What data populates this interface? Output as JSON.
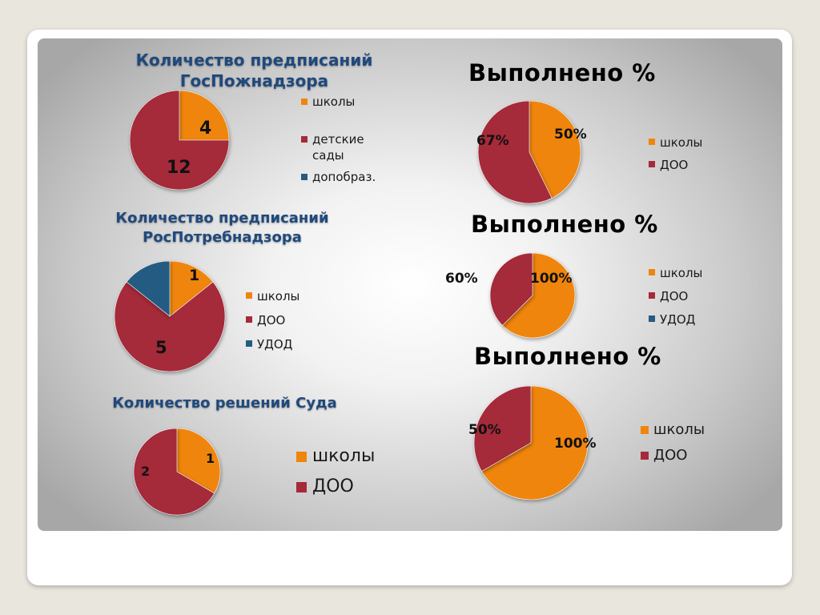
{
  "colors": {
    "orange": "#f0850d",
    "red": "#a52a3a",
    "blue": "#245b82"
  },
  "charts": {
    "gospozh": {
      "title": "Количество предписаний ГосПожнадзора",
      "labels": [
        "4",
        "12"
      ],
      "legend": [
        "школы",
        "детские сады",
        "допобраз."
      ]
    },
    "rospotreb": {
      "title": "Количество предписаний РосПотребнадзора",
      "labels": [
        "1",
        "5"
      ],
      "legend": [
        "школы",
        "ДОО",
        "УДОД"
      ]
    },
    "sud": {
      "title": "Количество решений Суда",
      "labels": [
        "1",
        "2"
      ],
      "legend": [
        "школы",
        "ДОО"
      ]
    },
    "vyp1": {
      "title": "Выполнено %",
      "labels": [
        "50%",
        "67%"
      ],
      "legend": [
        "школы",
        "ДОО"
      ]
    },
    "vyp2": {
      "title": "Выполнено %",
      "labels": [
        "100%",
        "60%"
      ],
      "legend": [
        "школы",
        "ДОО",
        "УДОД"
      ]
    },
    "vyp3": {
      "title": "Выполнено %",
      "labels": [
        "100%",
        "50%"
      ],
      "legend": [
        "школы",
        "ДОО"
      ]
    }
  },
  "chart_data": [
    {
      "type": "pie",
      "title": "Количество предписаний ГосПожнадзора",
      "categories": [
        "школы",
        "детские сады",
        "допобраз."
      ],
      "values": [
        4,
        12,
        0
      ],
      "colors": [
        "#f0850d",
        "#a52a3a",
        "#245b82"
      ]
    },
    {
      "type": "pie",
      "title": "Количество предписаний РосПотребнадзора",
      "categories": [
        "школы",
        "ДОО",
        "УДОД"
      ],
      "values": [
        1,
        5,
        1
      ],
      "colors": [
        "#f0850d",
        "#a52a3a",
        "#245b82"
      ]
    },
    {
      "type": "pie",
      "title": "Количество решений Суда",
      "categories": [
        "школы",
        "ДОО"
      ],
      "values": [
        1,
        2
      ],
      "colors": [
        "#f0850d",
        "#a52a3a"
      ]
    },
    {
      "type": "pie",
      "title": "Выполнено %",
      "categories": [
        "школы",
        "ДОО"
      ],
      "values": [
        50,
        67
      ],
      "colors": [
        "#f0850d",
        "#a52a3a"
      ]
    },
    {
      "type": "pie",
      "title": "Выполнено %",
      "categories": [
        "школы",
        "ДОО",
        "УДОД"
      ],
      "values": [
        100,
        60,
        0
      ],
      "colors": [
        "#f0850d",
        "#a52a3a",
        "#245b82"
      ]
    },
    {
      "type": "pie",
      "title": "Выполнено %",
      "categories": [
        "школы",
        "ДОО"
      ],
      "values": [
        100,
        50
      ],
      "colors": [
        "#f0850d",
        "#a52a3a"
      ]
    }
  ]
}
